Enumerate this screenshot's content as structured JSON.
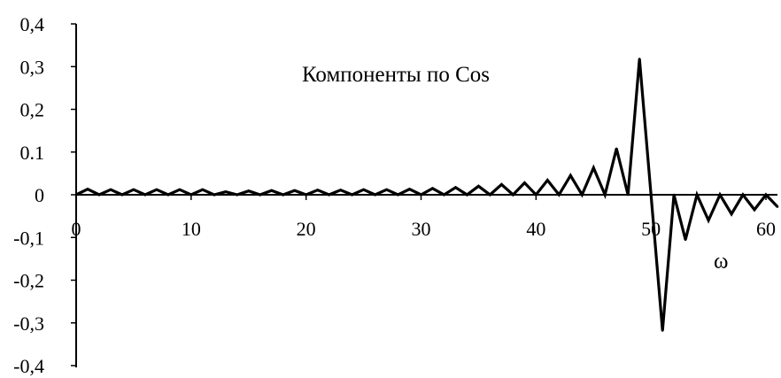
{
  "chart_data": {
    "type": "line",
    "title": "",
    "xlabel": "ω",
    "ylabel": "",
    "annotation": "Компоненты по Cos",
    "xlim": [
      0,
      61
    ],
    "ylim": [
      -0.4,
      0.4
    ],
    "x_ticks": [
      0,
      10,
      20,
      30,
      40,
      50,
      60
    ],
    "x_tick_labels": [
      "0",
      "10",
      "20",
      "30",
      "40",
      "50",
      "60"
    ],
    "y_ticks": [
      0.4,
      0.3,
      0.2,
      0.1,
      0,
      -0.1,
      -0.2,
      -0.3,
      -0.4
    ],
    "y_tick_labels": [
      "0,4",
      "0,3",
      "0,2",
      "0.1",
      "0",
      "-0,1",
      "-0,2",
      "-0,3",
      "-0,4"
    ],
    "grid": false,
    "legend": "none",
    "colors": {
      "line": "#000000",
      "axis": "#000000",
      "background": "#ffffff"
    },
    "series": [
      {
        "x": [
          0,
          1,
          2,
          3,
          4,
          5,
          6,
          7,
          8,
          9,
          10,
          11,
          12,
          13,
          14,
          15,
          16,
          17,
          18,
          19,
          20,
          21,
          22,
          23,
          24,
          25,
          26,
          27,
          28,
          29,
          30,
          31,
          32,
          33,
          34,
          35,
          36,
          37,
          38,
          39,
          40,
          41,
          42,
          43,
          44,
          45,
          46,
          47,
          48,
          49,
          50,
          51,
          52,
          53,
          54,
          55,
          56,
          57,
          58,
          59,
          60,
          61
        ],
        "values": [
          0,
          0.013,
          0,
          0.012,
          0,
          0.012,
          0,
          0.012,
          0,
          0.012,
          0,
          0.012,
          0,
          0.007,
          0,
          0.009,
          0,
          0.01,
          0,
          0.01,
          0,
          0.011,
          0,
          0.011,
          0,
          0.012,
          0,
          0.012,
          0,
          0.013,
          0,
          0.015,
          0,
          0.017,
          0,
          0.02,
          0,
          0.024,
          0,
          0.028,
          0,
          0.034,
          0,
          0.045,
          0,
          0.063,
          0,
          0.108,
          0,
          0.318,
          0,
          -0.318,
          0,
          -0.105,
          0,
          -0.06,
          0,
          -0.045,
          0,
          -0.035,
          0,
          -0.028
        ]
      }
    ]
  }
}
